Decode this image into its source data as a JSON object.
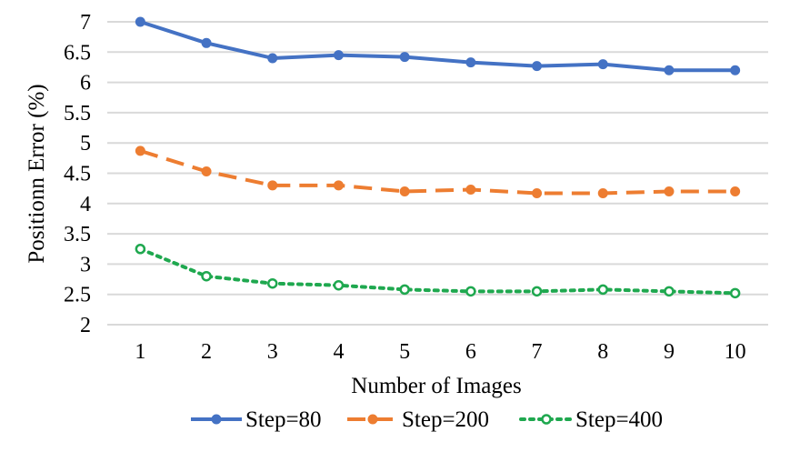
{
  "chart_data": {
    "type": "line",
    "title": "",
    "xlabel": "Number of Images",
    "ylabel": "Positionn Error (%)",
    "x": [
      1,
      2,
      3,
      4,
      5,
      6,
      7,
      8,
      9,
      10
    ],
    "x_tick_labels": [
      "1",
      "2",
      "3",
      "4",
      "5",
      "6",
      "7",
      "8",
      "9",
      "10"
    ],
    "ylim": [
      2,
      7
    ],
    "y_tick_labels": [
      "2",
      "2.5",
      "3",
      "3.5",
      "4",
      "4.5",
      "5",
      "5.5",
      "6",
      "6.5",
      "7"
    ],
    "grid": true,
    "legend_position": "bottom",
    "series": [
      {
        "name": "Step=80",
        "color": "#4472c4",
        "line_style": "solid",
        "marker": "filled-circle",
        "values": [
          7.0,
          6.65,
          6.4,
          6.45,
          6.42,
          6.33,
          6.27,
          6.3,
          6.2,
          6.2
        ]
      },
      {
        "name": "Step=200",
        "color": "#ed7d31",
        "line_style": "dashed",
        "marker": "filled-circle",
        "values": [
          4.87,
          4.53,
          4.3,
          4.3,
          4.2,
          4.23,
          4.17,
          4.17,
          4.2,
          4.2
        ]
      },
      {
        "name": "Step=400",
        "color": "#1fa84f",
        "line_style": "dotted",
        "marker": "hollow-circle",
        "values": [
          3.25,
          2.8,
          2.68,
          2.65,
          2.58,
          2.55,
          2.55,
          2.58,
          2.55,
          2.52
        ]
      }
    ]
  }
}
